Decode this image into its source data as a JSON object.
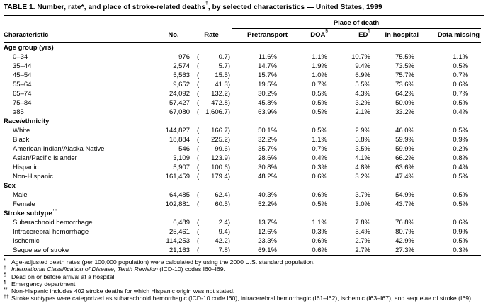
{
  "title": {
    "part1": "TABLE 1. Number, rate*, and place of stroke-related deaths",
    "marker": "†",
    "part2": ", by selected characteristics — United States, 1999"
  },
  "table": {
    "place_of_death_label": "Place of death",
    "headers": {
      "characteristic": "Characteristic",
      "no": "No.",
      "rate": "Rate",
      "pretransport": "Pretransport",
      "doa": "DOA",
      "doa_marker": "§",
      "ed": "ED",
      "ed_marker": "¶",
      "in_hospital": "In hospital",
      "data_missing": "Data missing"
    },
    "sections": [
      {
        "label": "Age group (yrs)",
        "marker": "",
        "rows": [
          {
            "label": "0–34",
            "no": "976",
            "rate": "0.7",
            "pretransport": "11.6%",
            "doa": "1.1%",
            "ed": "10.7%",
            "in_hospital": "75.5%",
            "data_missing": "1.1%"
          },
          {
            "label": "35–44",
            "no": "2,574",
            "rate": "5.7",
            "pretransport": "14.7%",
            "doa": "1.9%",
            "ed": "9.4%",
            "in_hospital": "73.5%",
            "data_missing": "0.5%"
          },
          {
            "label": "45–54",
            "no": "5,563",
            "rate": "15.5",
            "pretransport": "15.7%",
            "doa": "1.0%",
            "ed": "6.9%",
            "in_hospital": "75.7%",
            "data_missing": "0.7%"
          },
          {
            "label": "55–64",
            "no": "9,652",
            "rate": "41.3",
            "pretransport": "19.5%",
            "doa": "0.7%",
            "ed": "5.5%",
            "in_hospital": "73.6%",
            "data_missing": "0.6%"
          },
          {
            "label": "65–74",
            "no": "24,092",
            "rate": "132.2",
            "pretransport": "30.2%",
            "doa": "0.5%",
            "ed": "4.3%",
            "in_hospital": "64.2%",
            "data_missing": "0.7%"
          },
          {
            "label": "75–84",
            "no": "57,427",
            "rate": "472.8",
            "pretransport": "45.8%",
            "doa": "0.5%",
            "ed": "3.2%",
            "in_hospital": "50.0%",
            "data_missing": "0.5%"
          },
          {
            "label": "≥85",
            "no": "67,080",
            "rate": "1,606.7",
            "pretransport": "63.9%",
            "doa": "0.5%",
            "ed": "2.1%",
            "in_hospital": "33.2%",
            "data_missing": "0.4%"
          }
        ]
      },
      {
        "label": "Race/ethnicity",
        "marker": "",
        "rows": [
          {
            "label": "White",
            "no": "144,827",
            "rate": "166.7",
            "pretransport": "50.1%",
            "doa": "0.5%",
            "ed": "2.9%",
            "in_hospital": "46.0%",
            "data_missing": "0.5%"
          },
          {
            "label": "Black",
            "no": "18,884",
            "rate": "225.2",
            "pretransport": "32.2%",
            "doa": "1.1%",
            "ed": "5.8%",
            "in_hospital": "59.9%",
            "data_missing": "0.9%"
          },
          {
            "label": "American Indian/Alaska Native",
            "no": "546",
            "rate": "99.6",
            "pretransport": "35.7%",
            "doa": "0.7%",
            "ed": "3.5%",
            "in_hospital": "59.9%",
            "data_missing": "0.2%"
          },
          {
            "label": "Asian/Pacific Islander",
            "no": "3,109",
            "rate": "123.9",
            "pretransport": "28.6%",
            "doa": "0.4%",
            "ed": "4.1%",
            "in_hospital": "66.2%",
            "data_missing": "0.8%"
          },
          {
            "label": "Hispanic",
            "no": "5,907",
            "rate": "100.6",
            "pretransport": "30.8%",
            "doa": "0.3%",
            "ed": "4.8%",
            "in_hospital": "63.6%",
            "data_missing": "0.4%"
          },
          {
            "label": "Non-Hispanic",
            "label_marker": "**",
            "no": "161,459",
            "rate": "179.4",
            "pretransport": "48.2%",
            "doa": "0.6%",
            "ed": "3.2%",
            "in_hospital": "47.4%",
            "data_missing": "0.5%"
          }
        ]
      },
      {
        "label": "Sex",
        "marker": "",
        "rows": [
          {
            "label": "Male",
            "no": "64,485",
            "rate": "62.4",
            "pretransport": "40.3%",
            "doa": "0.6%",
            "ed": "3.7%",
            "in_hospital": "54.9%",
            "data_missing": "0.5%"
          },
          {
            "label": "Female",
            "no": "102,881",
            "rate": "60.5",
            "pretransport": "52.2%",
            "doa": "0.5%",
            "ed": "3.0%",
            "in_hospital": "43.7%",
            "data_missing": "0.5%"
          }
        ]
      },
      {
        "label": "Stroke subtype",
        "marker": "††",
        "rows": [
          {
            "label": "Subarachnoid hemorrhage",
            "no": "6,489",
            "rate": "2.4",
            "pretransport": "13.7%",
            "doa": "1.1%",
            "ed": "7.8%",
            "in_hospital": "76.8%",
            "data_missing": "0.6%"
          },
          {
            "label": "Intracerebral hemorrhage",
            "no": "25,461",
            "rate": "9.4",
            "pretransport": "12.6%",
            "doa": "0.3%",
            "ed": "5.4%",
            "in_hospital": "80.7%",
            "data_missing": "0.9%"
          },
          {
            "label": "Ischemic",
            "no": "114,253",
            "rate": "42.2",
            "pretransport": "23.3%",
            "doa": "0.6%",
            "ed": "2.7%",
            "in_hospital": "42.9%",
            "data_missing": "0.5%"
          },
          {
            "label": "Sequelae of stroke",
            "no": "21,163",
            "rate": "7.8",
            "pretransport": "69.1%",
            "doa": "0.6%",
            "ed": "2.7%",
            "in_hospital": "27.3%",
            "data_missing": "0.3%"
          }
        ]
      }
    ]
  },
  "footnotes": [
    {
      "marker": "*",
      "text": "Age-adjusted death rates (per 100,000 population) were calculated by using the 2000 U.S. standard population."
    },
    {
      "marker": "†",
      "italic": "International Classification of Disease, Tenth Revision",
      "text": " (ICD-10) codes I60–I69."
    },
    {
      "marker": "§",
      "text": "Dead on or before arrival at a hospital."
    },
    {
      "marker": "¶",
      "text": "Emergency department."
    },
    {
      "marker": "**",
      "text": "Non-Hispanic includes 402 stroke deaths for which Hispanic origin was not stated."
    },
    {
      "marker": "††",
      "text": "Stroke subtypes were categorized as subarachnoid hemorrhagic (ICD-10 code I60), intracerebral hemorrhagic (I61–I62), ischemic (I63–I67), and sequelae of stroke (I69)."
    }
  ]
}
